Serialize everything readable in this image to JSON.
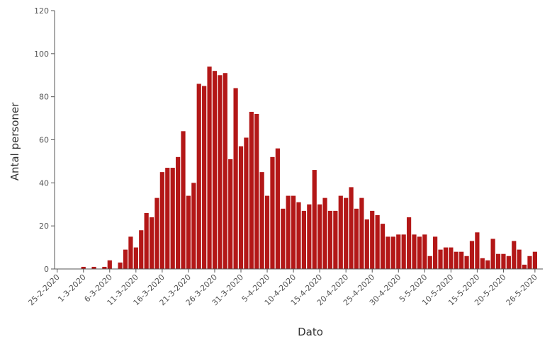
{
  "chart_data": {
    "type": "bar",
    "xlabel": "Dato",
    "ylabel": "Antal personer",
    "ylim": [
      0,
      120
    ],
    "yticks": [
      0,
      20,
      40,
      60,
      80,
      100,
      120
    ],
    "bar_color": "#b31717",
    "x_tick_labels": [
      "25-2-2020",
      "1-3-2020",
      "6-3-2020",
      "11-3-2020",
      "16-3-2020",
      "21-3-2020",
      "26-3-2020",
      "31-3-2020",
      "5-4-2020",
      "10-4-2020",
      "15-4-2020",
      "20-4-2020",
      "25-4-2020",
      "30-4-2020",
      "5-5-2020",
      "10-5-2020",
      "15-5-2020",
      "20-5-2020",
      "26-5-2020"
    ],
    "categories": [
      "25-2-2020",
      "26-2-2020",
      "27-2-2020",
      "28-2-2020",
      "29-2-2020",
      "1-3-2020",
      "2-3-2020",
      "3-3-2020",
      "4-3-2020",
      "5-3-2020",
      "6-3-2020",
      "7-3-2020",
      "8-3-2020",
      "9-3-2020",
      "10-3-2020",
      "11-3-2020",
      "12-3-2020",
      "13-3-2020",
      "14-3-2020",
      "15-3-2020",
      "16-3-2020",
      "17-3-2020",
      "18-3-2020",
      "19-3-2020",
      "20-3-2020",
      "21-3-2020",
      "22-3-2020",
      "23-3-2020",
      "24-3-2020",
      "25-3-2020",
      "26-3-2020",
      "27-3-2020",
      "28-3-2020",
      "29-3-2020",
      "30-3-2020",
      "31-3-2020",
      "1-4-2020",
      "2-4-2020",
      "3-4-2020",
      "4-4-2020",
      "5-4-2020",
      "6-4-2020",
      "7-4-2020",
      "8-4-2020",
      "9-4-2020",
      "10-4-2020",
      "11-4-2020",
      "12-4-2020",
      "13-4-2020",
      "14-4-2020",
      "15-4-2020",
      "16-4-2020",
      "17-4-2020",
      "18-4-2020",
      "19-4-2020",
      "20-4-2020",
      "21-4-2020",
      "22-4-2020",
      "23-4-2020",
      "24-4-2020",
      "25-4-2020",
      "26-4-2020",
      "27-4-2020",
      "28-4-2020",
      "29-4-2020",
      "30-4-2020",
      "1-5-2020",
      "2-5-2020",
      "3-5-2020",
      "4-5-2020",
      "5-5-2020",
      "6-5-2020",
      "7-5-2020",
      "8-5-2020",
      "9-5-2020",
      "10-5-2020",
      "11-5-2020",
      "12-5-2020",
      "13-5-2020",
      "14-5-2020",
      "15-5-2020",
      "16-5-2020",
      "17-5-2020",
      "18-5-2020",
      "19-5-2020",
      "20-5-2020",
      "21-5-2020",
      "22-5-2020",
      "23-5-2020",
      "24-5-2020",
      "25-5-2020",
      "26-5-2020",
      "27-5-2020"
    ],
    "values": [
      0,
      0,
      0,
      0,
      0,
      1,
      0,
      1,
      0,
      1,
      4,
      0,
      3,
      9,
      15,
      10,
      18,
      26,
      24,
      33,
      45,
      47,
      47,
      52,
      64,
      34,
      40,
      86,
      85,
      94,
      92,
      90,
      91,
      51,
      84,
      57,
      61,
      73,
      72,
      45,
      34,
      52,
      56,
      28,
      34,
      34,
      31,
      27,
      30,
      46,
      30,
      33,
      27,
      27,
      34,
      33,
      38,
      28,
      33,
      23,
      27,
      25,
      21,
      15,
      15,
      16,
      16,
      24,
      16,
      15,
      16,
      6,
      15,
      9,
      10,
      10,
      8,
      8,
      6,
      13,
      17,
      5,
      4,
      14,
      7,
      7,
      6,
      13,
      9,
      2,
      6,
      8,
      0
    ]
  }
}
